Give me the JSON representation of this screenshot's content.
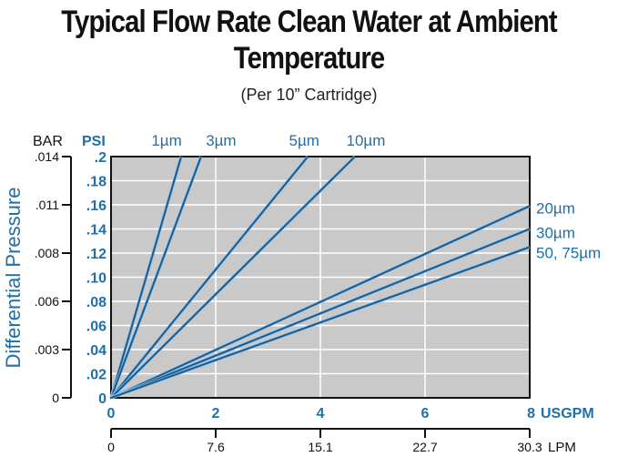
{
  "chart_data": {
    "type": "line",
    "title": "Typical Flow Rate Clean Water at Ambient Temperature",
    "subtitle": "(Per 10” Cartridge)",
    "ylabel": "Differential Pressure",
    "y_unit_left": "BAR",
    "y_unit_psi": "PSI",
    "x_unit": "USGPM",
    "x2_unit": "LPM",
    "xlim": [
      0,
      8
    ],
    "ylim": [
      0,
      0.2
    ],
    "grid": true,
    "x_ticks": [
      "0",
      "2",
      "4",
      "6",
      "8"
    ],
    "x2_ticks": [
      "0",
      "7.6",
      "15.1",
      "22.7",
      "30.3"
    ],
    "psi_ticks": [
      "0",
      ".02",
      ".04",
      ".06",
      ".08",
      ".10",
      ".12",
      ".14",
      ".16",
      ".18",
      ".2"
    ],
    "bar_ticks": [
      "0",
      ".003",
      ".006",
      ".008",
      ".011",
      ".014"
    ],
    "series": [
      {
        "name": "1µm",
        "x": [
          0,
          1.34
        ],
        "y": [
          0,
          0.2
        ]
      },
      {
        "name": "3µm",
        "x": [
          0,
          1.72
        ],
        "y": [
          0,
          0.2
        ]
      },
      {
        "name": "5µm",
        "x": [
          0,
          3.76
        ],
        "y": [
          0,
          0.2
        ]
      },
      {
        "name": "10µm",
        "x": [
          0,
          4.66
        ],
        "y": [
          0,
          0.2
        ]
      },
      {
        "name": "20µm",
        "x": [
          0,
          8
        ],
        "y": [
          0,
          0.159
        ]
      },
      {
        "name": "30µm",
        "x": [
          0,
          8
        ],
        "y": [
          0,
          0.14
        ]
      },
      {
        "name": "50, 75µm",
        "x": [
          0,
          8
        ],
        "y": [
          0,
          0.125
        ]
      }
    ],
    "colors": {
      "line": "#1a5a8e",
      "label": "#1f6fa8",
      "plot_bg": "#c9c9c9",
      "grid": "#ffffff"
    }
  }
}
